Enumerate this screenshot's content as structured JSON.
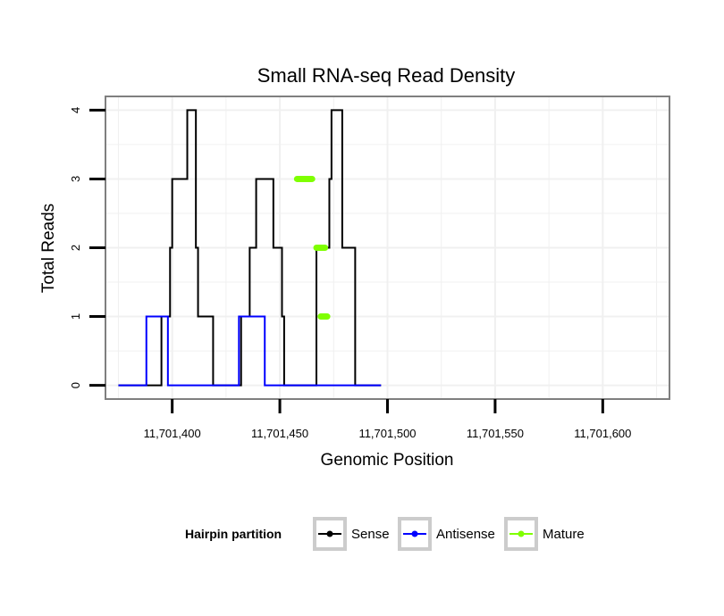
{
  "chart_data": {
    "type": "line",
    "title": "Small RNA-seq Read Density",
    "xlabel": "Genomic Position",
    "ylabel": "Total Reads",
    "xlim": [
      11701369,
      11701631
    ],
    "ylim": [
      -0.2,
      4.2
    ],
    "x_ticks": [
      11701400,
      11701450,
      11701500,
      11701550,
      11701600
    ],
    "x_tick_labels": [
      "11,701,400",
      "11,701,450",
      "11,701,500",
      "11,701,550",
      "11,701,600"
    ],
    "y_ticks": [
      0,
      1,
      2,
      3,
      4
    ],
    "y_tick_labels": [
      "0",
      "1",
      "2",
      "3",
      "4"
    ],
    "grid": true,
    "legend": {
      "title": "Hairpin partition",
      "position": "bottom",
      "entries": [
        {
          "name": "Sense",
          "color": "#000000"
        },
        {
          "name": "Antisense",
          "color": "#0000ff"
        },
        {
          "name": "Mature",
          "color": "#7fff00"
        }
      ]
    },
    "series": [
      {
        "name": "Sense",
        "color": "#000000",
        "step_points": [
          [
            11701375,
            0
          ],
          [
            11701395,
            0
          ],
          [
            11701395,
            1
          ],
          [
            11701399,
            1
          ],
          [
            11701399,
            2
          ],
          [
            11701400,
            2
          ],
          [
            11701400,
            3
          ],
          [
            11701407,
            3
          ],
          [
            11701407,
            4
          ],
          [
            11701411,
            4
          ],
          [
            11701411,
            2
          ],
          [
            11701412,
            2
          ],
          [
            11701412,
            1
          ],
          [
            11701419,
            1
          ],
          [
            11701419,
            0
          ],
          [
            11701432,
            0
          ],
          [
            11701432,
            1
          ],
          [
            11701436,
            1
          ],
          [
            11701436,
            2
          ],
          [
            11701439,
            2
          ],
          [
            11701439,
            3
          ],
          [
            11701447,
            3
          ],
          [
            11701447,
            2
          ],
          [
            11701451,
            2
          ],
          [
            11701451,
            1
          ],
          [
            11701452,
            1
          ],
          [
            11701452,
            0
          ],
          [
            11701467,
            0
          ],
          [
            11701467,
            2
          ],
          [
            11701473,
            2
          ],
          [
            11701473,
            3
          ],
          [
            11701474,
            3
          ],
          [
            11701474,
            4
          ],
          [
            11701479,
            4
          ],
          [
            11701479,
            2
          ],
          [
            11701485,
            2
          ],
          [
            11701485,
            0
          ],
          [
            11701497,
            0
          ]
        ]
      },
      {
        "name": "Antisense",
        "color": "#0000ff",
        "step_points": [
          [
            11701375,
            0
          ],
          [
            11701388,
            0
          ],
          [
            11701388,
            1
          ],
          [
            11701398,
            1
          ],
          [
            11701398,
            0
          ],
          [
            11701431,
            0
          ],
          [
            11701431,
            1
          ],
          [
            11701443,
            1
          ],
          [
            11701443,
            0
          ],
          [
            11701497,
            0
          ]
        ]
      },
      {
        "name": "Mature",
        "color": "#7fff00",
        "segments": [
          {
            "x": [
              11701458,
              11701465
            ],
            "y": 3
          },
          {
            "x": [
              11701467,
              11701471
            ],
            "y": 2
          },
          {
            "x": [
              11701469,
              11701472
            ],
            "y": 1
          }
        ]
      }
    ]
  }
}
